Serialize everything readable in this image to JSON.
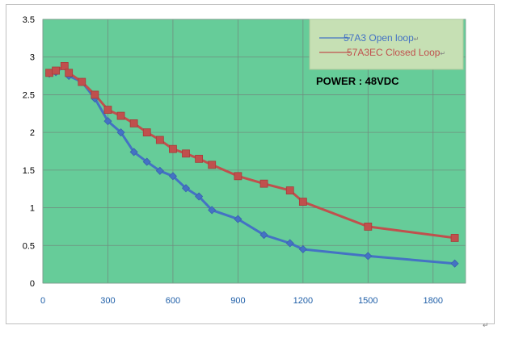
{
  "chart_data": {
    "type": "line",
    "title": "",
    "xlabel": "",
    "ylabel": "",
    "xlim": [
      0,
      1950
    ],
    "ylim": [
      0,
      3.5
    ],
    "x_ticks": [
      "0",
      "300",
      "600",
      "900",
      "1200",
      "1500",
      "1800"
    ],
    "y_ticks": [
      "0",
      "0.5",
      "1",
      "1.5",
      "2",
      "2.5",
      "3",
      "3.5"
    ],
    "grid": true,
    "legend_position": "top-right",
    "plot_background": "#66cc99",
    "legend_background": "#c6e0b4",
    "series": [
      {
        "name": "57A3 Open loop",
        "color": "#4472c4",
        "marker": "diamond",
        "x": [
          30,
          60,
          100,
          120,
          180,
          240,
          300,
          360,
          420,
          480,
          540,
          600,
          660,
          720,
          780,
          900,
          1020,
          1140,
          1200,
          1500,
          1900
        ],
        "y": [
          2.78,
          2.8,
          2.88,
          2.75,
          2.67,
          2.45,
          2.15,
          2.0,
          1.74,
          1.61,
          1.49,
          1.42,
          1.26,
          1.15,
          0.97,
          0.85,
          0.64,
          0.53,
          0.45,
          0.36,
          0.26
        ]
      },
      {
        "name": "57A3EC Closed Loop",
        "color": "#c0504d",
        "marker": "square",
        "x": [
          30,
          60,
          100,
          120,
          180,
          240,
          300,
          360,
          420,
          480,
          540,
          600,
          660,
          720,
          780,
          900,
          1020,
          1140,
          1200,
          1500,
          1900
        ],
        "y": [
          2.79,
          2.82,
          2.88,
          2.79,
          2.67,
          2.5,
          2.3,
          2.22,
          2.12,
          2.0,
          1.9,
          1.78,
          1.72,
          1.65,
          1.57,
          1.42,
          1.32,
          1.23,
          1.08,
          0.75,
          0.6
        ]
      }
    ],
    "annotations": [
      "POWER : 48VDC"
    ]
  },
  "legend_suffix_glyph": "↵",
  "corner_glyph": "↵"
}
